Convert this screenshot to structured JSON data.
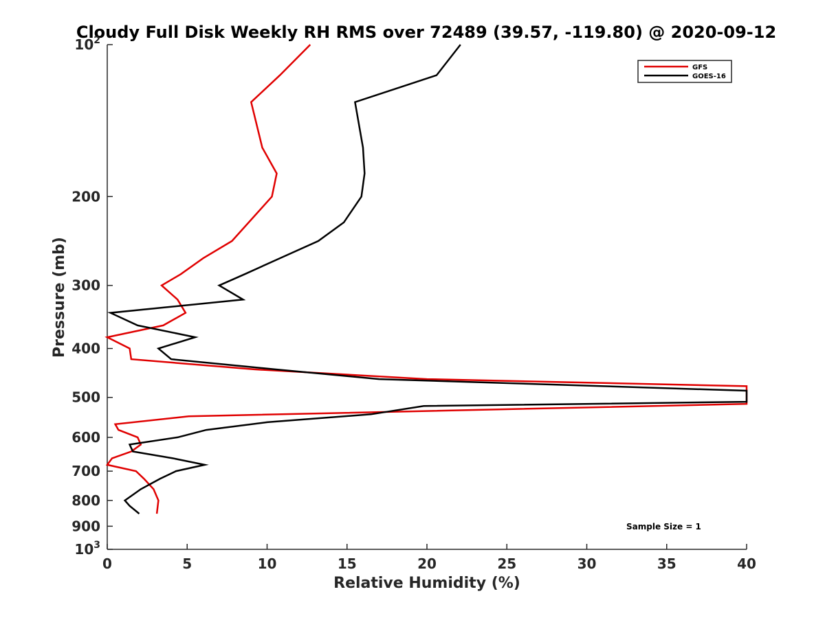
{
  "chart_data": {
    "type": "line",
    "title": "Cloudy Full Disk Weekly RH RMS over 72489 (39.57, -119.80) @ 2020-09-12",
    "xlabel": "Relative Humidity (%)",
    "ylabel": "Pressure (mb)",
    "xlim": [
      0,
      40
    ],
    "ylim": [
      100,
      1000
    ],
    "yscale": "log",
    "yreversed": true,
    "grid": false,
    "legend_position": "top-right",
    "x_ticks": [
      "0",
      "5",
      "10",
      "15",
      "20",
      "25",
      "30",
      "35",
      "40"
    ],
    "y_ticks": [
      {
        "value": 100,
        "base": "10",
        "exp": "2"
      },
      {
        "value": 200,
        "label": "200"
      },
      {
        "value": 300,
        "label": "300"
      },
      {
        "value": 400,
        "label": "400"
      },
      {
        "value": 500,
        "label": "500"
      },
      {
        "value": 600,
        "label": "600"
      },
      {
        "value": 700,
        "label": "700"
      },
      {
        "value": 800,
        "label": "800"
      },
      {
        "value": 900,
        "label": "900"
      },
      {
        "value": 1000,
        "base": "10",
        "exp": "3"
      }
    ],
    "series": [
      {
        "name": "GFS",
        "color": "#e00000",
        "points": [
          {
            "x": 12.7,
            "p": 100
          },
          {
            "x": 10.8,
            "p": 115
          },
          {
            "x": 9.0,
            "p": 130
          },
          {
            "x": 9.7,
            "p": 160
          },
          {
            "x": 10.6,
            "p": 180
          },
          {
            "x": 10.3,
            "p": 200
          },
          {
            "x": 7.8,
            "p": 245
          },
          {
            "x": 6.0,
            "p": 265
          },
          {
            "x": 4.6,
            "p": 285
          },
          {
            "x": 3.4,
            "p": 300
          },
          {
            "x": 4.4,
            "p": 320
          },
          {
            "x": 4.9,
            "p": 340
          },
          {
            "x": 3.5,
            "p": 360
          },
          {
            "x": 0.0,
            "p": 380
          },
          {
            "x": 1.4,
            "p": 400
          },
          {
            "x": 1.5,
            "p": 420
          },
          {
            "x": 9.2,
            "p": 440
          },
          {
            "x": 20.0,
            "p": 460
          },
          {
            "x": 40.0,
            "p": 475
          },
          {
            "x": 40.0,
            "p": 515
          },
          {
            "x": 5.1,
            "p": 545
          },
          {
            "x": 0.5,
            "p": 565
          },
          {
            "x": 0.7,
            "p": 580
          },
          {
            "x": 1.9,
            "p": 600
          },
          {
            "x": 2.1,
            "p": 620
          },
          {
            "x": 1.5,
            "p": 640
          },
          {
            "x": 0.3,
            "p": 660
          },
          {
            "x": 0.0,
            "p": 680
          },
          {
            "x": 1.8,
            "p": 700
          },
          {
            "x": 2.3,
            "p": 725
          },
          {
            "x": 2.9,
            "p": 760
          },
          {
            "x": 3.2,
            "p": 800
          },
          {
            "x": 3.1,
            "p": 850
          }
        ]
      },
      {
        "name": "GOES-16",
        "color": "#000000",
        "points": [
          {
            "x": 22.1,
            "p": 100
          },
          {
            "x": 20.6,
            "p": 115
          },
          {
            "x": 15.5,
            "p": 130
          },
          {
            "x": 16.0,
            "p": 160
          },
          {
            "x": 16.1,
            "p": 180
          },
          {
            "x": 15.9,
            "p": 200
          },
          {
            "x": 14.8,
            "p": 225
          },
          {
            "x": 13.2,
            "p": 245
          },
          {
            "x": 10.8,
            "p": 265
          },
          {
            "x": 8.6,
            "p": 285
          },
          {
            "x": 7.0,
            "p": 300
          },
          {
            "x": 8.5,
            "p": 320
          },
          {
            "x": 0.2,
            "p": 340
          },
          {
            "x": 1.9,
            "p": 360
          },
          {
            "x": 5.5,
            "p": 380
          },
          {
            "x": 3.2,
            "p": 400
          },
          {
            "x": 4.0,
            "p": 420
          },
          {
            "x": 10.5,
            "p": 440
          },
          {
            "x": 17.0,
            "p": 460
          },
          {
            "x": 40.0,
            "p": 485
          },
          {
            "x": 40.0,
            "p": 510
          },
          {
            "x": 19.8,
            "p": 520
          },
          {
            "x": 16.5,
            "p": 540
          },
          {
            "x": 10.0,
            "p": 560
          },
          {
            "x": 6.2,
            "p": 580
          },
          {
            "x": 4.4,
            "p": 600
          },
          {
            "x": 1.4,
            "p": 620
          },
          {
            "x": 1.6,
            "p": 640
          },
          {
            "x": 4.1,
            "p": 660
          },
          {
            "x": 6.1,
            "p": 680
          },
          {
            "x": 4.3,
            "p": 700
          },
          {
            "x": 3.3,
            "p": 725
          },
          {
            "x": 2.1,
            "p": 760
          },
          {
            "x": 1.1,
            "p": 800
          },
          {
            "x": 1.4,
            "p": 820
          },
          {
            "x": 2.0,
            "p": 850
          }
        ]
      }
    ],
    "annotation": "Sample Size = 1"
  }
}
